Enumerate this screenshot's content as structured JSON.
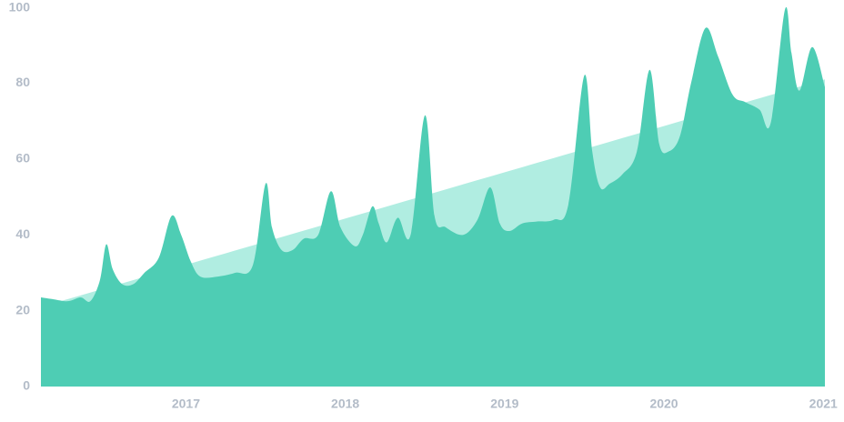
{
  "chart_data": {
    "type": "area",
    "xlim": [
      2016.09,
      2021.01
    ],
    "xticks": [
      2017,
      2018,
      2019,
      2020,
      2021
    ],
    "ylim": [
      0,
      100
    ],
    "yticks": [
      0,
      20,
      40,
      60,
      80,
      100
    ],
    "grid": false,
    "series": [
      {
        "color": "#b0ede1",
        "x": [
          2016.09,
          2021.01
        ],
        "values": [
          21,
          81
        ]
      },
      {
        "color": "#4ecdb4",
        "x": [
          2016.09,
          2016.17,
          2016.26,
          2016.34,
          2016.4,
          2016.46,
          2016.5,
          2016.54,
          2016.6,
          2016.67,
          2016.74,
          2016.83,
          2016.91,
          2016.97,
          2017.03,
          2017.09,
          2017.2,
          2017.31,
          2017.42,
          2017.5,
          2017.54,
          2017.6,
          2017.67,
          2017.74,
          2017.83,
          2017.91,
          2017.97,
          2018.06,
          2018.11,
          2018.17,
          2018.21,
          2018.26,
          2018.33,
          2018.41,
          2018.5,
          2018.56,
          2018.63,
          2018.74,
          2018.83,
          2018.91,
          2018.97,
          2019.03,
          2019.11,
          2019.2,
          2019.31,
          2019.4,
          2019.5,
          2019.55,
          2019.6,
          2019.66,
          2019.74,
          2019.83,
          2019.91,
          2019.97,
          2020.03,
          2020.1,
          2020.17,
          2020.26,
          2020.34,
          2020.43,
          2020.51,
          2020.6,
          2020.67,
          2020.76,
          2020.8,
          2020.85,
          2020.93,
          2021.01
        ],
        "values": [
          23.5,
          23,
          22.5,
          23.5,
          22.5,
          28,
          37.5,
          31,
          27,
          27,
          30,
          34,
          45,
          40,
          33,
          29,
          29,
          30,
          32,
          53.5,
          42,
          36,
          36,
          39,
          40,
          51.5,
          42,
          37,
          40,
          47.5,
          43,
          38,
          44.5,
          40,
          71.5,
          45,
          42,
          40,
          44,
          52.5,
          43,
          41,
          43,
          43.5,
          44,
          48,
          82,
          62,
          52.5,
          53.5,
          56,
          62,
          83.5,
          64,
          62,
          66,
          80,
          94.5,
          87,
          77,
          75,
          73,
          69.5,
          99.5,
          88,
          78,
          89.5,
          79
        ]
      }
    ]
  }
}
